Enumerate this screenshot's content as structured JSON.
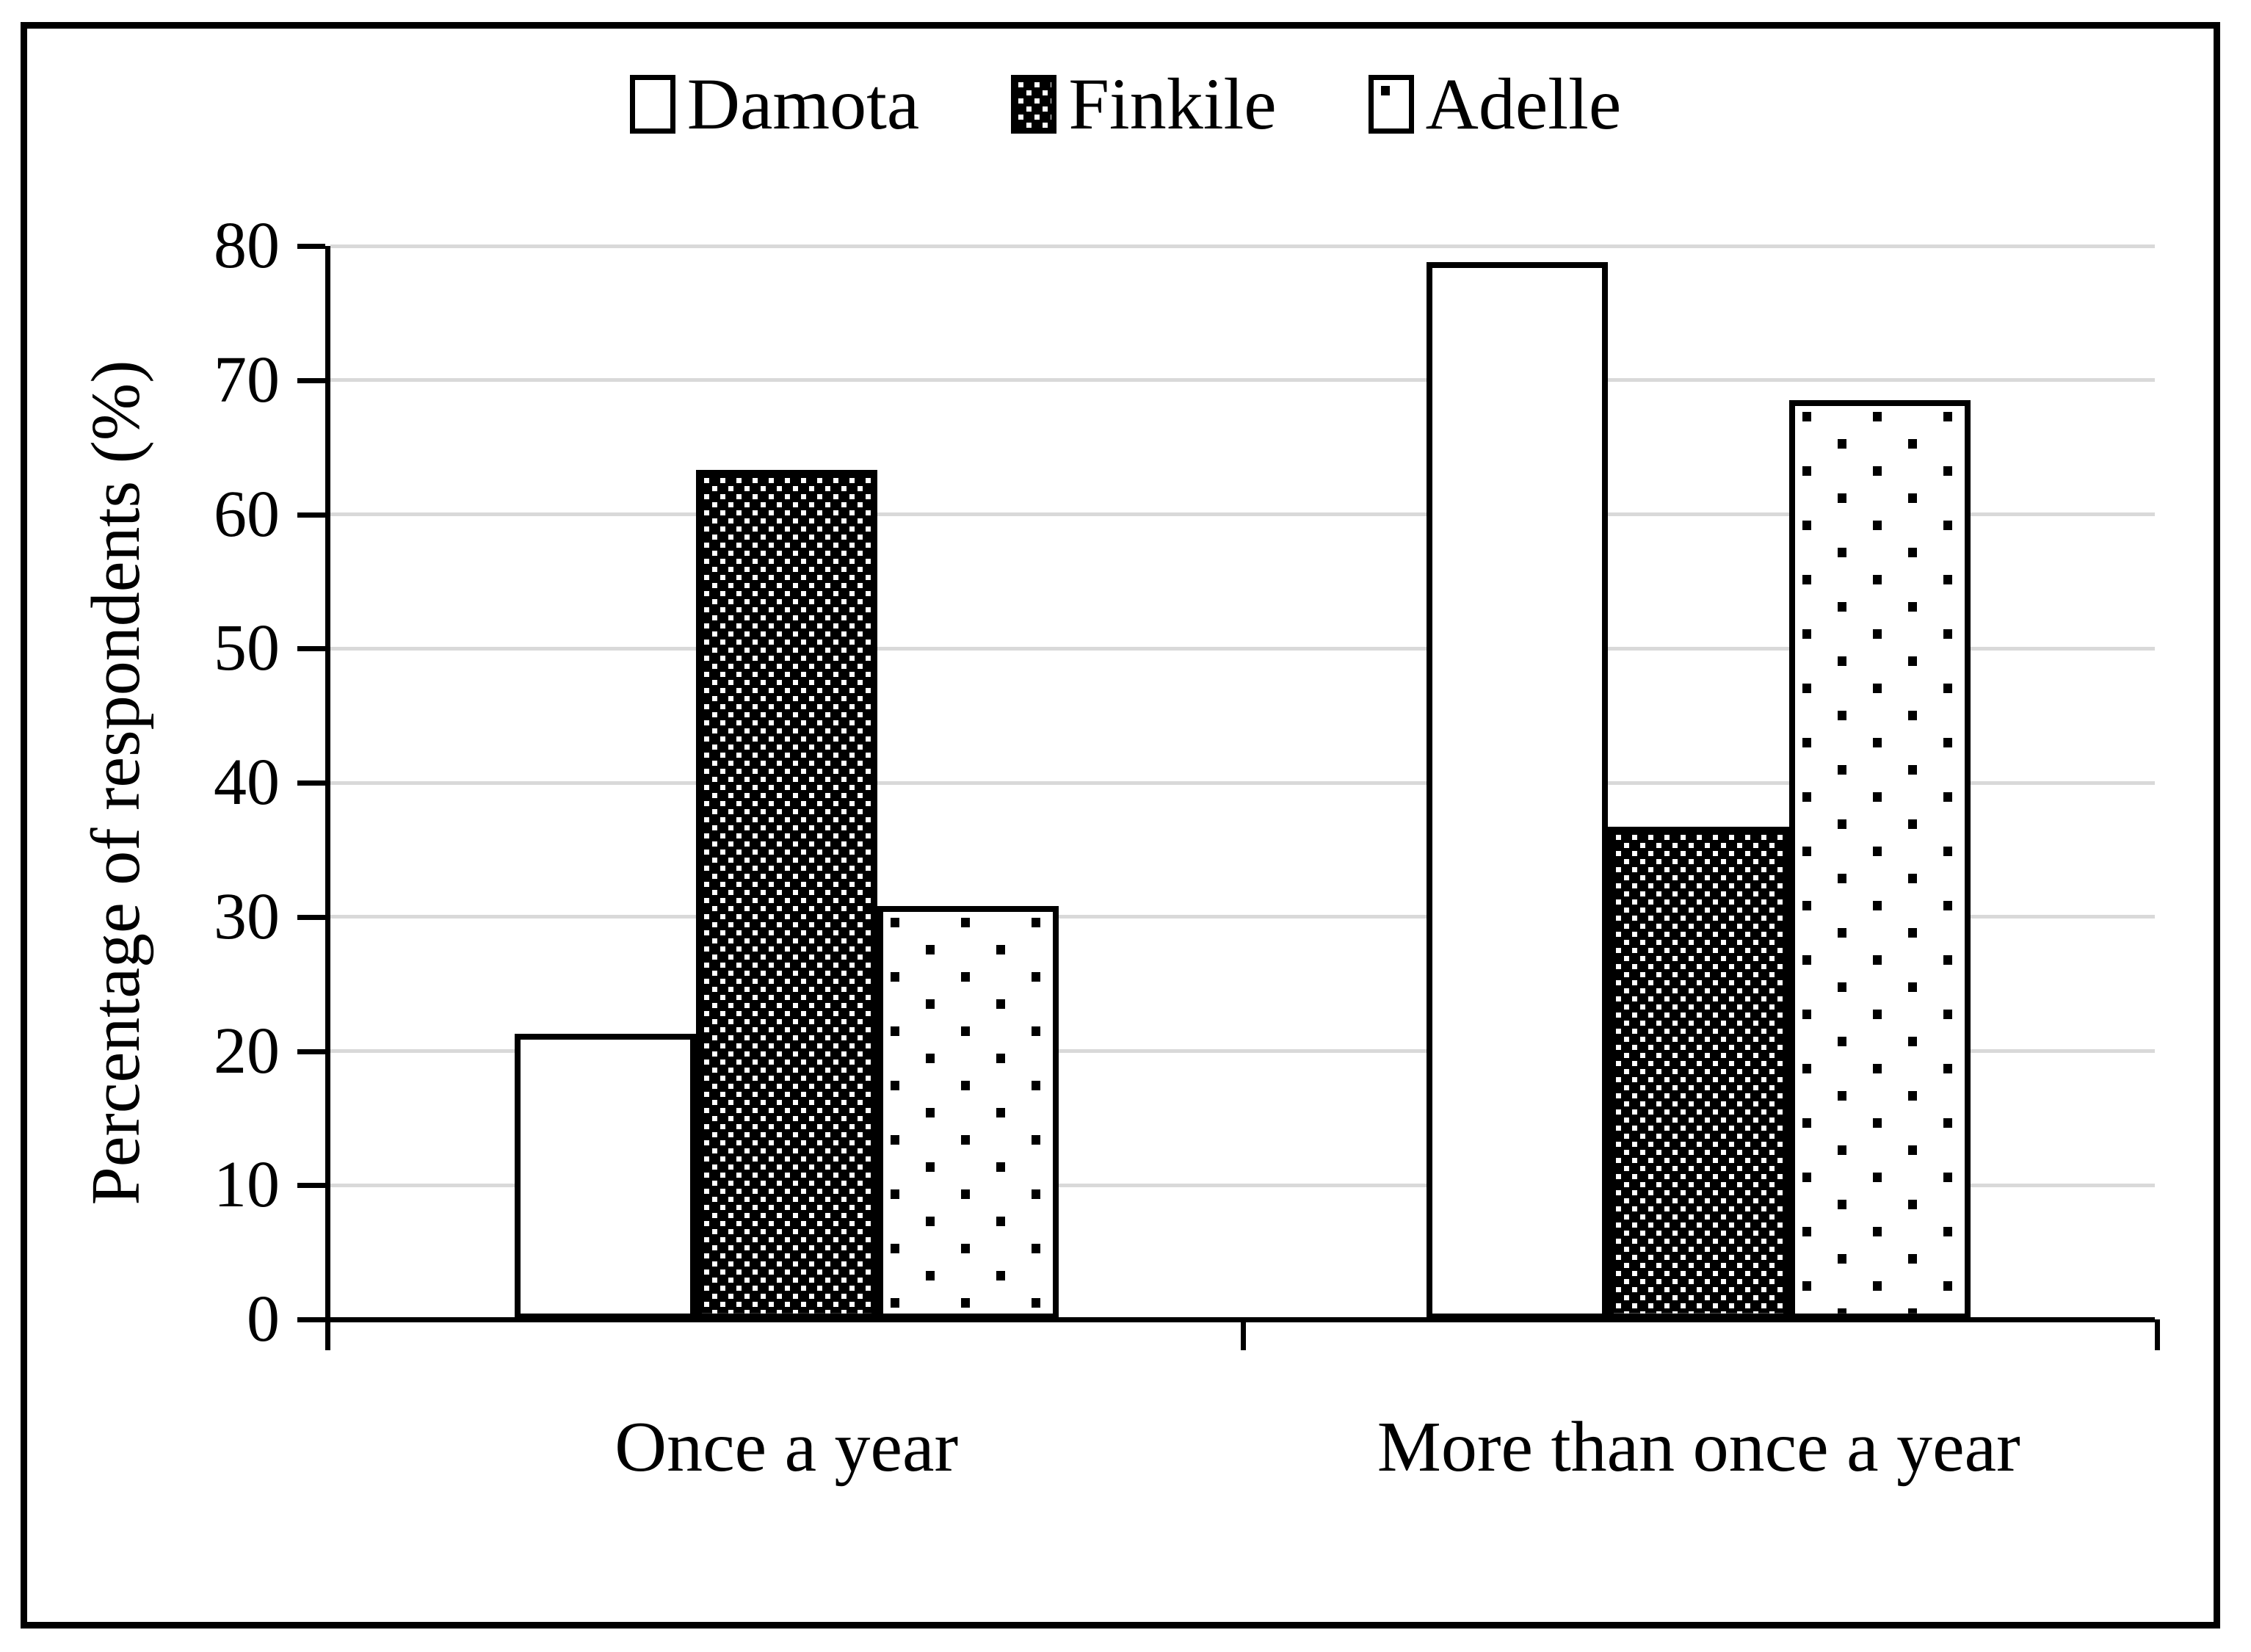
{
  "chart_data": {
    "type": "bar",
    "title": "",
    "categories": [
      "Once a year",
      "More than once a year"
    ],
    "series": [
      {
        "name": "Damota",
        "pattern": "solid-white",
        "values": [
          21.3,
          78.8
        ]
      },
      {
        "name": "Finkile",
        "pattern": "dense-white-dots-on-black",
        "values": [
          63.3,
          36.7
        ]
      },
      {
        "name": "Adelle",
        "pattern": "sparse-black-dots-on-white",
        "values": [
          30.8,
          68.5
        ]
      }
    ],
    "xlabel": "",
    "ylabel": "Percentage of respondents (%)",
    "ylim": [
      0,
      80
    ],
    "ytick_step": 10,
    "yticks": [
      "0",
      "10",
      "20",
      "30",
      "40",
      "50",
      "60",
      "70",
      "80"
    ],
    "grid": "horizontal-gray",
    "legend_position": "top-center",
    "colors": {
      "foreground": "#000000",
      "background": "#ffffff",
      "gridline": "#d9d9d9"
    }
  }
}
